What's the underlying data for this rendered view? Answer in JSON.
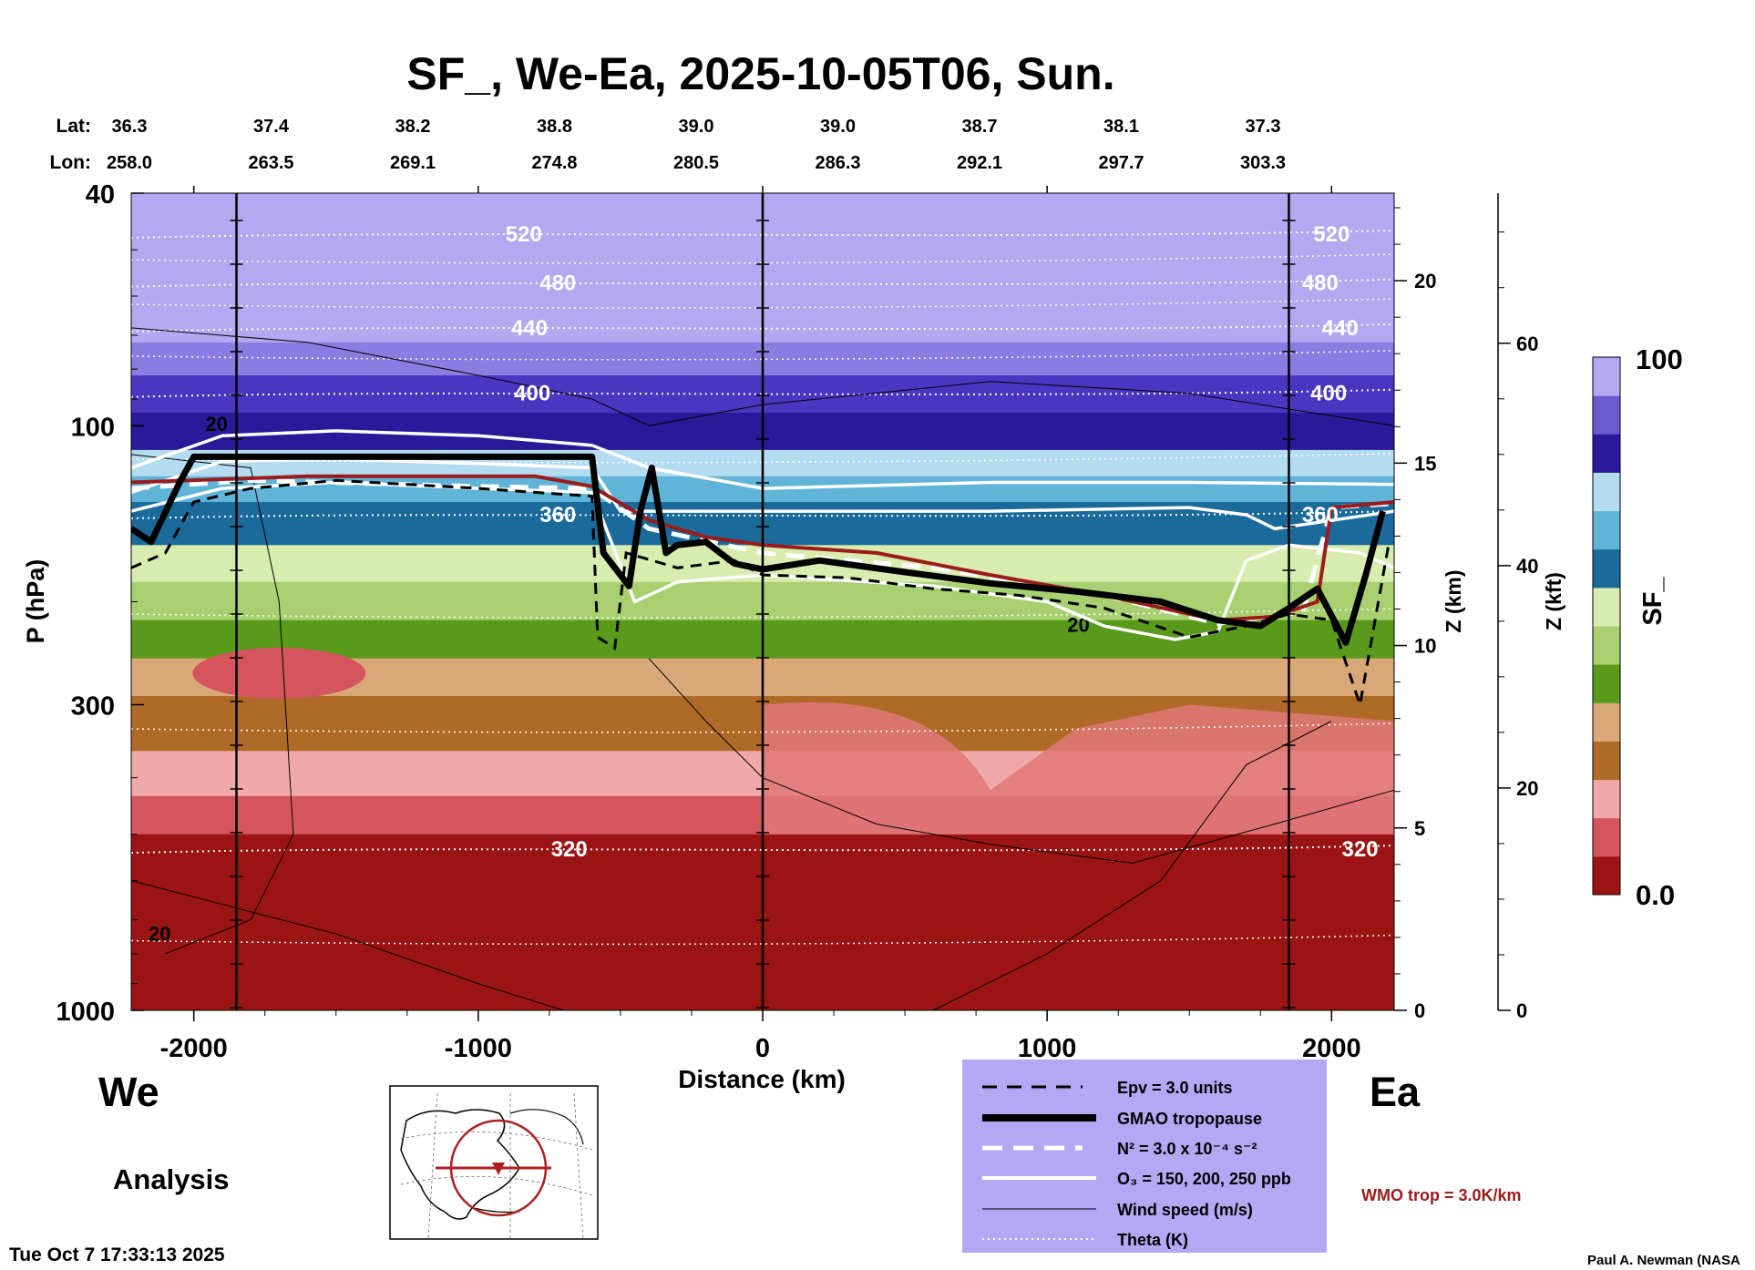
{
  "chart_data": {
    "type": "heatmap",
    "title": "SF_, We-Ea, 2025-10-05T06, Sun.",
    "xlabel": "Distance (km)",
    "ylabel": "P (hPa)",
    "ylabel_z_km": "Z (km)",
    "ylabel_z_kft": "Z (kft)",
    "colorbar_label": "SF_",
    "xlim": [
      -2220,
      2220
    ],
    "ylim_hpa": [
      1000,
      40
    ],
    "x_ticks": [
      -2000,
      -1000,
      0,
      1000,
      2000
    ],
    "x_tick_labels": [
      "-2000",
      "-1000",
      "0",
      "1000",
      "2000"
    ],
    "p_ticks": [
      40,
      100,
      300,
      1000
    ],
    "p_tick_labels": [
      "40",
      "100",
      "300",
      "1000"
    ],
    "z_km_ticks": [
      0,
      5,
      10,
      15,
      20
    ],
    "z_km_tick_labels": [
      "0",
      "5",
      "10",
      "15",
      "20"
    ],
    "z_kft_ticks": [
      0,
      20,
      40,
      60
    ],
    "z_kft_tick_labels": [
      "0",
      "20",
      "40",
      "60"
    ],
    "z_km_max": 22.4,
    "z_kft_max": 73.5,
    "lat_label": "Lat:",
    "lon_label": "Lon:",
    "lat_values": [
      "36.3",
      "37.4",
      "38.2",
      "38.8",
      "39.0",
      "39.0",
      "38.7",
      "38.1",
      "37.3"
    ],
    "lon_values": [
      "258.0",
      "263.5",
      "269.1",
      "274.8",
      "280.5",
      "286.3",
      "292.1",
      "297.7",
      "303.3"
    ],
    "vertical_lines_km": [
      -1850,
      0,
      1850
    ],
    "colorbar_min_label": "0.0",
    "colorbar_max_label": "100",
    "colorbar_colors": [
      "#9b1414",
      "#d4555d",
      "#f0a8a8",
      "#b06a28",
      "#d9a878",
      "#5a9a1a",
      "#a8d070",
      "#d8ecb0",
      "#1a6a9a",
      "#60b4d8",
      "#b4dcf0",
      "#2a1a9a",
      "#6a5ad0",
      "#b4a8f0"
    ],
    "theta_levels": [
      {
        "value": 520,
        "p": 47,
        "label_x": [
          -840,
          2000
        ]
      },
      {
        "value": 480,
        "p": 57,
        "label_x": [
          -720,
          1960
        ]
      },
      {
        "value": 440,
        "p": 68,
        "label_x": [
          -820,
          2030
        ]
      },
      {
        "value": 400,
        "p": 88,
        "label_x": [
          -810,
          1990
        ]
      },
      {
        "value": 360,
        "p": 142,
        "label_x": [
          -720,
          1960
        ]
      },
      {
        "value": 320,
        "p": 530,
        "label_x": [
          -680,
          2100
        ]
      }
    ],
    "tropopause_gmao_p": [
      {
        "x": -2220,
        "p": 150
      },
      {
        "x": -2150,
        "p": 158
      },
      {
        "x": -2050,
        "p": 125
      },
      {
        "x": -2000,
        "p": 113
      },
      {
        "x": -1600,
        "p": 113
      },
      {
        "x": -600,
        "p": 113
      },
      {
        "x": -560,
        "p": 165
      },
      {
        "x": -470,
        "p": 188
      },
      {
        "x": -430,
        "p": 140
      },
      {
        "x": -390,
        "p": 118
      },
      {
        "x": -340,
        "p": 165
      },
      {
        "x": -300,
        "p": 160
      },
      {
        "x": -200,
        "p": 158
      },
      {
        "x": -100,
        "p": 172
      },
      {
        "x": 0,
        "p": 176
      },
      {
        "x": 200,
        "p": 170
      },
      {
        "x": 500,
        "p": 178
      },
      {
        "x": 800,
        "p": 186
      },
      {
        "x": 1100,
        "p": 192
      },
      {
        "x": 1400,
        "p": 200
      },
      {
        "x": 1600,
        "p": 215
      },
      {
        "x": 1750,
        "p": 220
      },
      {
        "x": 1850,
        "p": 205
      },
      {
        "x": 1950,
        "p": 190
      },
      {
        "x": 2050,
        "p": 235
      },
      {
        "x": 2120,
        "p": 180
      },
      {
        "x": 2180,
        "p": 140
      }
    ],
    "wmo_trop_p": [
      {
        "x": -2220,
        "p": 125
      },
      {
        "x": -1600,
        "p": 122
      },
      {
        "x": -800,
        "p": 122
      },
      {
        "x": -600,
        "p": 127
      },
      {
        "x": -400,
        "p": 145
      },
      {
        "x": -200,
        "p": 155
      },
      {
        "x": 0,
        "p": 160
      },
      {
        "x": 400,
        "p": 165
      },
      {
        "x": 800,
        "p": 180
      },
      {
        "x": 1200,
        "p": 195
      },
      {
        "x": 1600,
        "p": 215
      },
      {
        "x": 1800,
        "p": 212
      },
      {
        "x": 1950,
        "p": 200
      },
      {
        "x": 2000,
        "p": 138
      },
      {
        "x": 2220,
        "p": 135
      }
    ],
    "epv_p": [
      {
        "x": -2220,
        "p": 175
      },
      {
        "x": -2100,
        "p": 165
      },
      {
        "x": -2000,
        "p": 135
      },
      {
        "x": -1800,
        "p": 128
      },
      {
        "x": -1500,
        "p": 124
      },
      {
        "x": -1000,
        "p": 128
      },
      {
        "x": -600,
        "p": 132
      },
      {
        "x": -580,
        "p": 230
      },
      {
        "x": -520,
        "p": 240
      },
      {
        "x": -480,
        "p": 165
      },
      {
        "x": -300,
        "p": 175
      },
      {
        "x": -100,
        "p": 170
      },
      {
        "x": 0,
        "p": 180
      },
      {
        "x": 300,
        "p": 182
      },
      {
        "x": 600,
        "p": 190
      },
      {
        "x": 900,
        "p": 195
      },
      {
        "x": 1200,
        "p": 205
      },
      {
        "x": 1500,
        "p": 230
      },
      {
        "x": 1700,
        "p": 220
      },
      {
        "x": 1850,
        "p": 210
      },
      {
        "x": 2000,
        "p": 215
      },
      {
        "x": 2100,
        "p": 300
      },
      {
        "x": 2200,
        "p": 160
      }
    ],
    "n2_p": [
      {
        "x": -2220,
        "p": 128
      },
      {
        "x": -1800,
        "p": 124
      },
      {
        "x": -1000,
        "p": 127
      },
      {
        "x": -600,
        "p": 128
      },
      {
        "x": -400,
        "p": 150
      },
      {
        "x": 0,
        "p": 165
      },
      {
        "x": 600,
        "p": 175
      },
      {
        "x": 1200,
        "p": 195
      },
      {
        "x": 1600,
        "p": 218
      },
      {
        "x": 1900,
        "p": 208
      },
      {
        "x": 2000,
        "p": 138
      },
      {
        "x": 2200,
        "p": 136
      }
    ],
    "ozone_250_p": [
      {
        "x": -2220,
        "p": 118
      },
      {
        "x": -1900,
        "p": 104
      },
      {
        "x": -1500,
        "p": 102
      },
      {
        "x": -1000,
        "p": 104
      },
      {
        "x": -600,
        "p": 108
      },
      {
        "x": -400,
        "p": 118
      },
      {
        "x": 0,
        "p": 128
      },
      {
        "x": 800,
        "p": 125
      },
      {
        "x": 1500,
        "p": 125
      },
      {
        "x": 2220,
        "p": 126
      }
    ],
    "ozone_200_p": [
      {
        "x": -2220,
        "p": 130
      },
      {
        "x": -1900,
        "p": 115
      },
      {
        "x": -1500,
        "p": 114
      },
      {
        "x": -1000,
        "p": 116
      },
      {
        "x": -600,
        "p": 118
      },
      {
        "x": -500,
        "p": 140
      },
      {
        "x": 0,
        "p": 140
      },
      {
        "x": 800,
        "p": 140
      },
      {
        "x": 1500,
        "p": 138
      },
      {
        "x": 1700,
        "p": 142
      },
      {
        "x": 1800,
        "p": 150
      },
      {
        "x": 2220,
        "p": 140
      }
    ],
    "ozone_150_p": [
      {
        "x": -2220,
        "p": 140
      },
      {
        "x": -1900,
        "p": 128
      },
      {
        "x": -1500,
        "p": 125
      },
      {
        "x": -1000,
        "p": 128
      },
      {
        "x": -600,
        "p": 130
      },
      {
        "x": -450,
        "p": 200
      },
      {
        "x": -300,
        "p": 185
      },
      {
        "x": 0,
        "p": 180
      },
      {
        "x": 600,
        "p": 188
      },
      {
        "x": 1000,
        "p": 200
      },
      {
        "x": 1200,
        "p": 220
      },
      {
        "x": 1450,
        "p": 232
      },
      {
        "x": 1600,
        "p": 225
      },
      {
        "x": 1700,
        "p": 170
      },
      {
        "x": 1850,
        "p": 160
      },
      {
        "x": 2100,
        "p": 165
      },
      {
        "x": 2220,
        "p": 175
      }
    ],
    "wind_contour_label": "20",
    "legend": [
      {
        "style": "dashed-black",
        "label": "Epv = 3.0 units"
      },
      {
        "style": "thick-black",
        "label": "GMAO tropopause"
      },
      {
        "style": "dashed-white",
        "label": "N² = 3.0 x 10⁻⁴ s⁻²"
      },
      {
        "style": "solid-white",
        "label": "O₃ = 150, 200, 250 ppb"
      },
      {
        "style": "thin-black",
        "label": "Wind speed (m/s)"
      },
      {
        "style": "dotted-white",
        "label": "Theta (K)"
      }
    ],
    "wmo_trop_label": "WMO trop = 3.0K/km",
    "left_direction": "We",
    "right_direction": "Ea",
    "analysis_label": "Analysis",
    "timestamp": "Tue Oct  7 17:33:13 2025",
    "author": "Paul A. Newman (NASA"
  },
  "colors": {
    "tropopause_wmo": "#9a1c1c",
    "legend_bg": "#b4a8f4",
    "map_circle": "#b02020"
  }
}
